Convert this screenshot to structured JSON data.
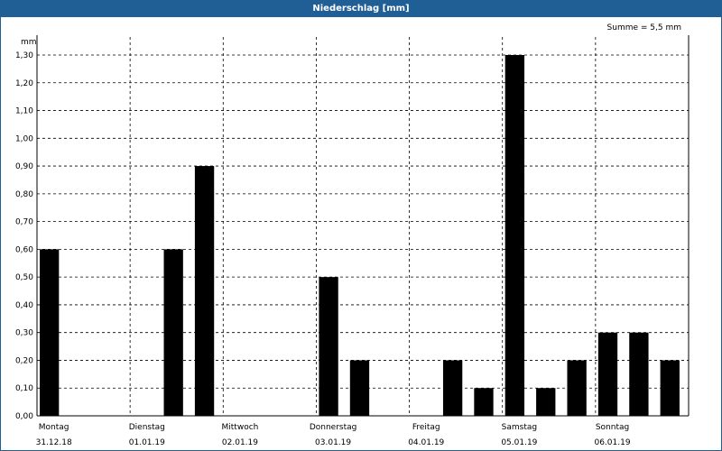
{
  "header": {
    "title": "Niederschlag [mm]",
    "sum_label": "Summe = 5,5 mm"
  },
  "chart_data": {
    "type": "bar",
    "title": "Niederschlag [mm]",
    "ylabel": "mm",
    "xlabel": "",
    "ylim": [
      0,
      1.3
    ],
    "yticks": [
      "0,00",
      "0,10",
      "0,20",
      "0,30",
      "0,40",
      "0,50",
      "0,60",
      "0,70",
      "0,80",
      "0,90",
      "1,00",
      "1,10",
      "1,20",
      "1,30"
    ],
    "grid": true,
    "days": [
      {
        "name": "Montag",
        "date": "31.12.18"
      },
      {
        "name": "Dienstag",
        "date": "01.01.19"
      },
      {
        "name": "Mittwoch",
        "date": "02.01.19"
      },
      {
        "name": "Donnerstag",
        "date": "03.01.19"
      },
      {
        "name": "Freitag",
        "date": "04.01.19"
      },
      {
        "name": "Samstag",
        "date": "05.01.19"
      },
      {
        "name": "Sonntag",
        "date": "06.01.19"
      }
    ],
    "slots_per_day": 3,
    "values": [
      0.6,
      0,
      0,
      0,
      0.6,
      0.9,
      0,
      0,
      0,
      0.5,
      0.2,
      0,
      0,
      0.2,
      0.1,
      1.3,
      0.1,
      0.2,
      0.3,
      0.3,
      0.2
    ],
    "bar_color": "#000000",
    "grid_color": "#000000"
  }
}
